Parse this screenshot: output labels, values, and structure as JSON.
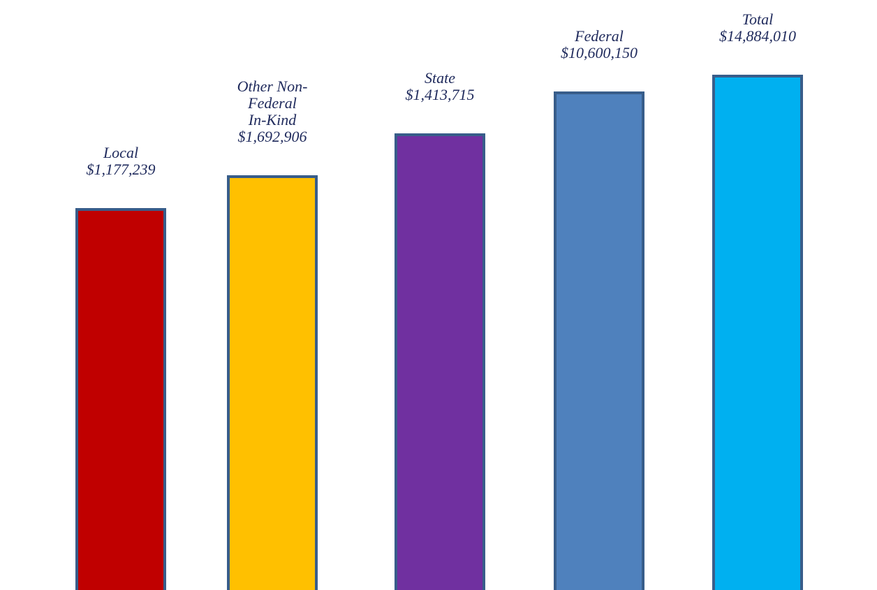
{
  "chart_data": {
    "type": "bar",
    "title": "",
    "xlabel": "",
    "ylabel": "",
    "grid": false,
    "legend": "none",
    "categories": [
      "Local",
      "Other Non-Federal In-Kind",
      "State",
      "Federal",
      "Total"
    ],
    "values": [
      1177239,
      1692906,
      1413715,
      10600150,
      14884010
    ],
    "bars": [
      {
        "category": "Local",
        "value": 1177239,
        "label_lines": [
          "Local",
          "$1,177,239"
        ],
        "color": "#c00000"
      },
      {
        "category": "Other Non-Federal In-Kind",
        "value": 1692906,
        "label_lines": [
          "Other Non-",
          "Federal",
          "In-Kind",
          "$1,692,906"
        ],
        "color": "#ffc000"
      },
      {
        "category": "State",
        "value": 1413715,
        "label_lines": [
          "State",
          "$1,413,715"
        ],
        "color": "#7030a0"
      },
      {
        "category": "Federal",
        "value": 10600150,
        "label_lines": [
          "Federal",
          "$10,600,150"
        ],
        "color": "#4f81bd"
      },
      {
        "category": "Total",
        "value": 14884010,
        "label_lines": [
          "Total",
          "$14,884,010"
        ],
        "color": "#00b0f0"
      }
    ],
    "bar_outline_color": "#385d8a",
    "label_color": "#1f2a5c"
  }
}
